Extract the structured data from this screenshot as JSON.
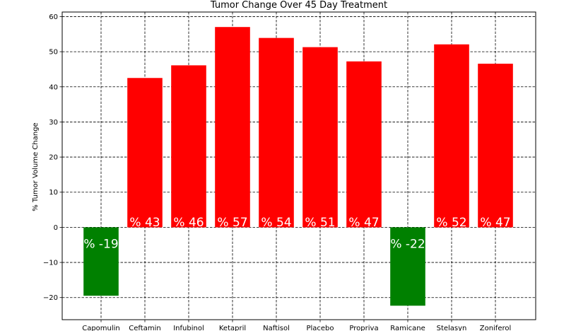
{
  "chart_data": {
    "type": "bar",
    "title": "Tumor Change Over 45 Day Treatment",
    "xlabel": "",
    "ylabel": "% Tumor Volume Change",
    "categories": [
      "Capomulin",
      "Ceftamin",
      "Infubinol",
      "Ketapril",
      "Naftisol",
      "Placebo",
      "Propriva",
      "Ramicane",
      "Stelasyn",
      "Zoniferol"
    ],
    "values": [
      -19.48,
      42.52,
      46.12,
      57.03,
      53.92,
      51.3,
      47.24,
      -22.32,
      52.09,
      46.58
    ],
    "data_labels": [
      "% -19",
      "% 43",
      "% 46",
      "% 57",
      "% 54",
      "% 51",
      "% 47",
      "% -22",
      "% 52",
      "% 47"
    ],
    "yticks": [
      "−20",
      "−10",
      "0",
      "10",
      "20",
      "30",
      "40",
      "50",
      "60"
    ],
    "ytick_values": [
      -20,
      -10,
      0,
      10,
      20,
      30,
      40,
      50,
      60
    ],
    "ylim": [
      -26.3,
      61.3
    ],
    "grid": true,
    "grid_style": "dashed",
    "colors": {
      "positive": "#ff0000",
      "negative": "#008000",
      "grid": "#000000",
      "axis": "#000000",
      "data_label": "#ffffff"
    }
  }
}
